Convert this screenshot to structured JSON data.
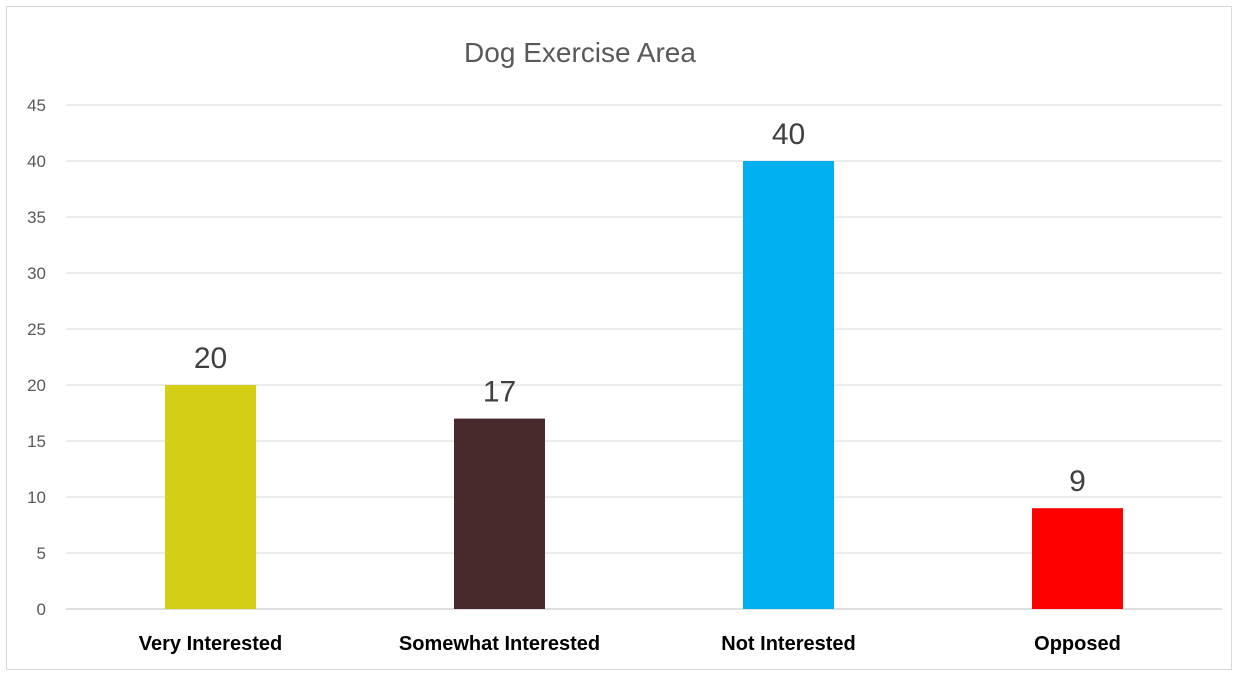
{
  "chart_data": {
    "type": "bar",
    "title": "Dog Exercise Area",
    "xlabel": "",
    "ylabel": "",
    "categories": [
      "Very Interested",
      "Somewhat Interested",
      "Not Interested",
      "Opposed"
    ],
    "values": [
      20,
      17,
      40,
      9
    ],
    "data_labels": [
      "20",
      "17",
      "40",
      "9"
    ],
    "colors": [
      "#d4cf15",
      "#48292c",
      "#00b0f0",
      "#ff0000"
    ],
    "ylim": [
      0,
      45
    ],
    "yticks": [
      0,
      5,
      10,
      15,
      20,
      25,
      30,
      35,
      40,
      45
    ],
    "grid": true,
    "legend": "none"
  }
}
